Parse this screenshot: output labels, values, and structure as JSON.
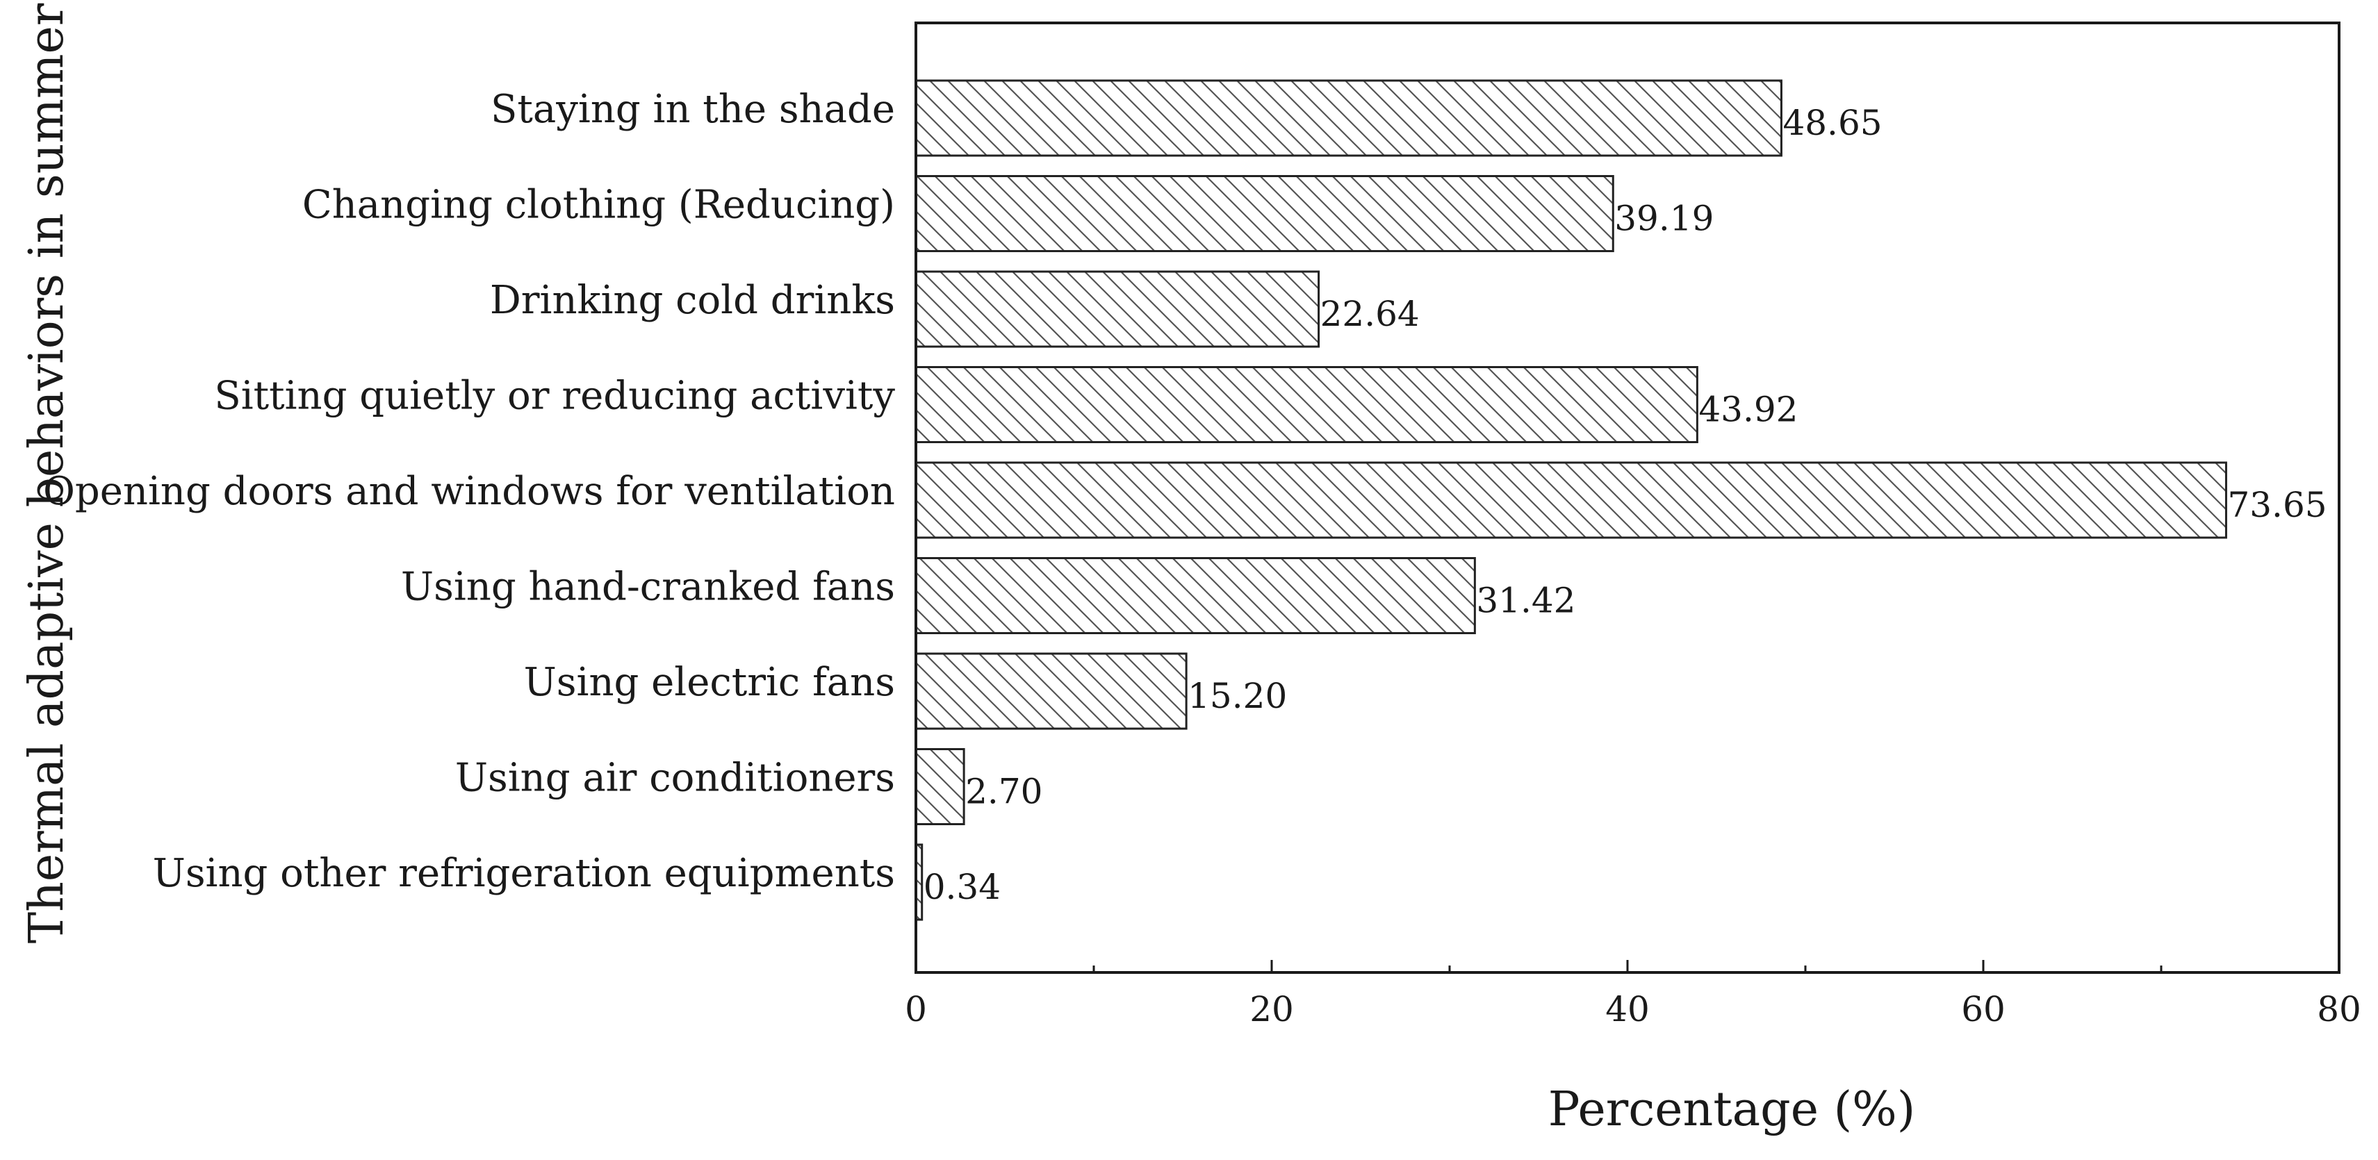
{
  "chart_data": {
    "type": "bar",
    "orientation": "horizontal",
    "categories": [
      "Staying in the shade",
      "Changing clothing (Reducing)",
      "Drinking cold drinks",
      "Sitting quietly or reducing activity",
      "Opening doors and windows for ventilation",
      "Using hand-cranked fans",
      "Using electric fans",
      "Using air conditioners",
      "Using other refrigeration equipments"
    ],
    "values": [
      48.65,
      39.19,
      22.64,
      43.92,
      73.65,
      31.42,
      15.2,
      2.7,
      0.34
    ],
    "value_labels": [
      "48.65",
      "39.19",
      "22.64",
      "43.92",
      "73.65",
      "31.42",
      "15.20",
      "2.70",
      "0.34"
    ],
    "xlabel": "Percentage (%)",
    "ylabel": "Thermal adaptive behaviors in summer",
    "xlim": [
      0,
      80
    ],
    "xticks": [
      0,
      20,
      40,
      60,
      80
    ],
    "xtick_labels": [
      "0",
      "20",
      "40",
      "60",
      "80"
    ],
    "minor_xticks": [
      10,
      30,
      50,
      70
    ],
    "bar_fill": "hatched",
    "bar_color": "#ffffff",
    "hatch_color": "#555555",
    "edge_color": "#222222",
    "grid": false,
    "legend": "none"
  }
}
